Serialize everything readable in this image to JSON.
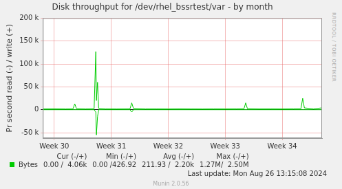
{
  "chart_data": {
    "type": "line",
    "title": "Disk throughput for /dev/rhel_bssrtest/var - by month",
    "y_label": "Pr second read (-) / write (+)",
    "side_text": "RRDTOOL / TOBI OETIKER",
    "x": [
      29.8,
      30.0,
      30.2,
      30.33,
      30.36,
      30.39,
      30.55,
      30.7,
      30.73,
      30.74,
      30.76,
      30.78,
      30.9,
      31.1,
      31.33,
      31.36,
      31.39,
      31.6,
      31.8,
      32.0,
      32.2,
      32.4,
      32.6,
      32.8,
      33.0,
      33.2,
      33.33,
      33.36,
      33.39,
      33.6,
      33.8,
      34.0,
      34.2,
      34.33,
      34.36,
      34.39,
      34.55,
      34.7
    ],
    "series": [
      {
        "name": "Bytes",
        "color": "#00cc00",
        "values": [
          2000,
          2200,
          1900,
          2100,
          13000,
          2500,
          2000,
          2300,
          127000,
          20000,
          60000,
          3000,
          2100,
          1900,
          2200,
          15000,
          3000,
          2000,
          2100,
          1900,
          2200,
          2000,
          1800,
          2100,
          2000,
          2200,
          2300,
          15000,
          2500,
          2000,
          2100,
          1900,
          2200,
          2400,
          25000,
          4000,
          2000,
          4060
        ]
      },
      {
        "name": "Bytes",
        "color": "#00cc00",
        "values": [
          0,
          0,
          0,
          0,
          0,
          0,
          0,
          0,
          -5000,
          -55000,
          -15000,
          0,
          0,
          0,
          0,
          -5000,
          0,
          0,
          0,
          0,
          0,
          0,
          0,
          0,
          0,
          0,
          0,
          0,
          0,
          0,
          0,
          0,
          0,
          0,
          0,
          0,
          0,
          0
        ]
      }
    ],
    "xlim": [
      29.8,
      34.7
    ],
    "xticks": [
      {
        "value": 30,
        "label": "Week 30"
      },
      {
        "value": 31,
        "label": "Week 31"
      },
      {
        "value": 32,
        "label": "Week 32"
      },
      {
        "value": 33,
        "label": "Week 33"
      },
      {
        "value": 34,
        "label": "Week 34"
      }
    ],
    "ylim": [
      -62000,
      200000
    ],
    "yticks": [
      {
        "value": -50000,
        "label": "-50 k"
      },
      0,
      {
        "value": 50000,
        "label": "50 k"
      },
      {
        "value": 100000,
        "label": "100 k"
      },
      {
        "value": 150000,
        "label": "150 k"
      },
      {
        "value": 200000,
        "label": "200 k"
      }
    ],
    "grid": true,
    "summary": {
      "headers": [
        "Cur (-/+)",
        "Min (-/+)",
        "Avg (-/+)",
        "Max (-/+)"
      ],
      "rows": [
        {
          "name": "Bytes",
          "color": "#00cc00",
          "cells": [
            "0.00 /  4.06k",
            "0.00 /426.92",
            "211.93 /  2.20k",
            "1.27M/  2.50M"
          ]
        }
      ]
    },
    "last_update": "Last update: Mon Aug 26 13:15:08 2024",
    "version": "Munin 2.0.56"
  }
}
